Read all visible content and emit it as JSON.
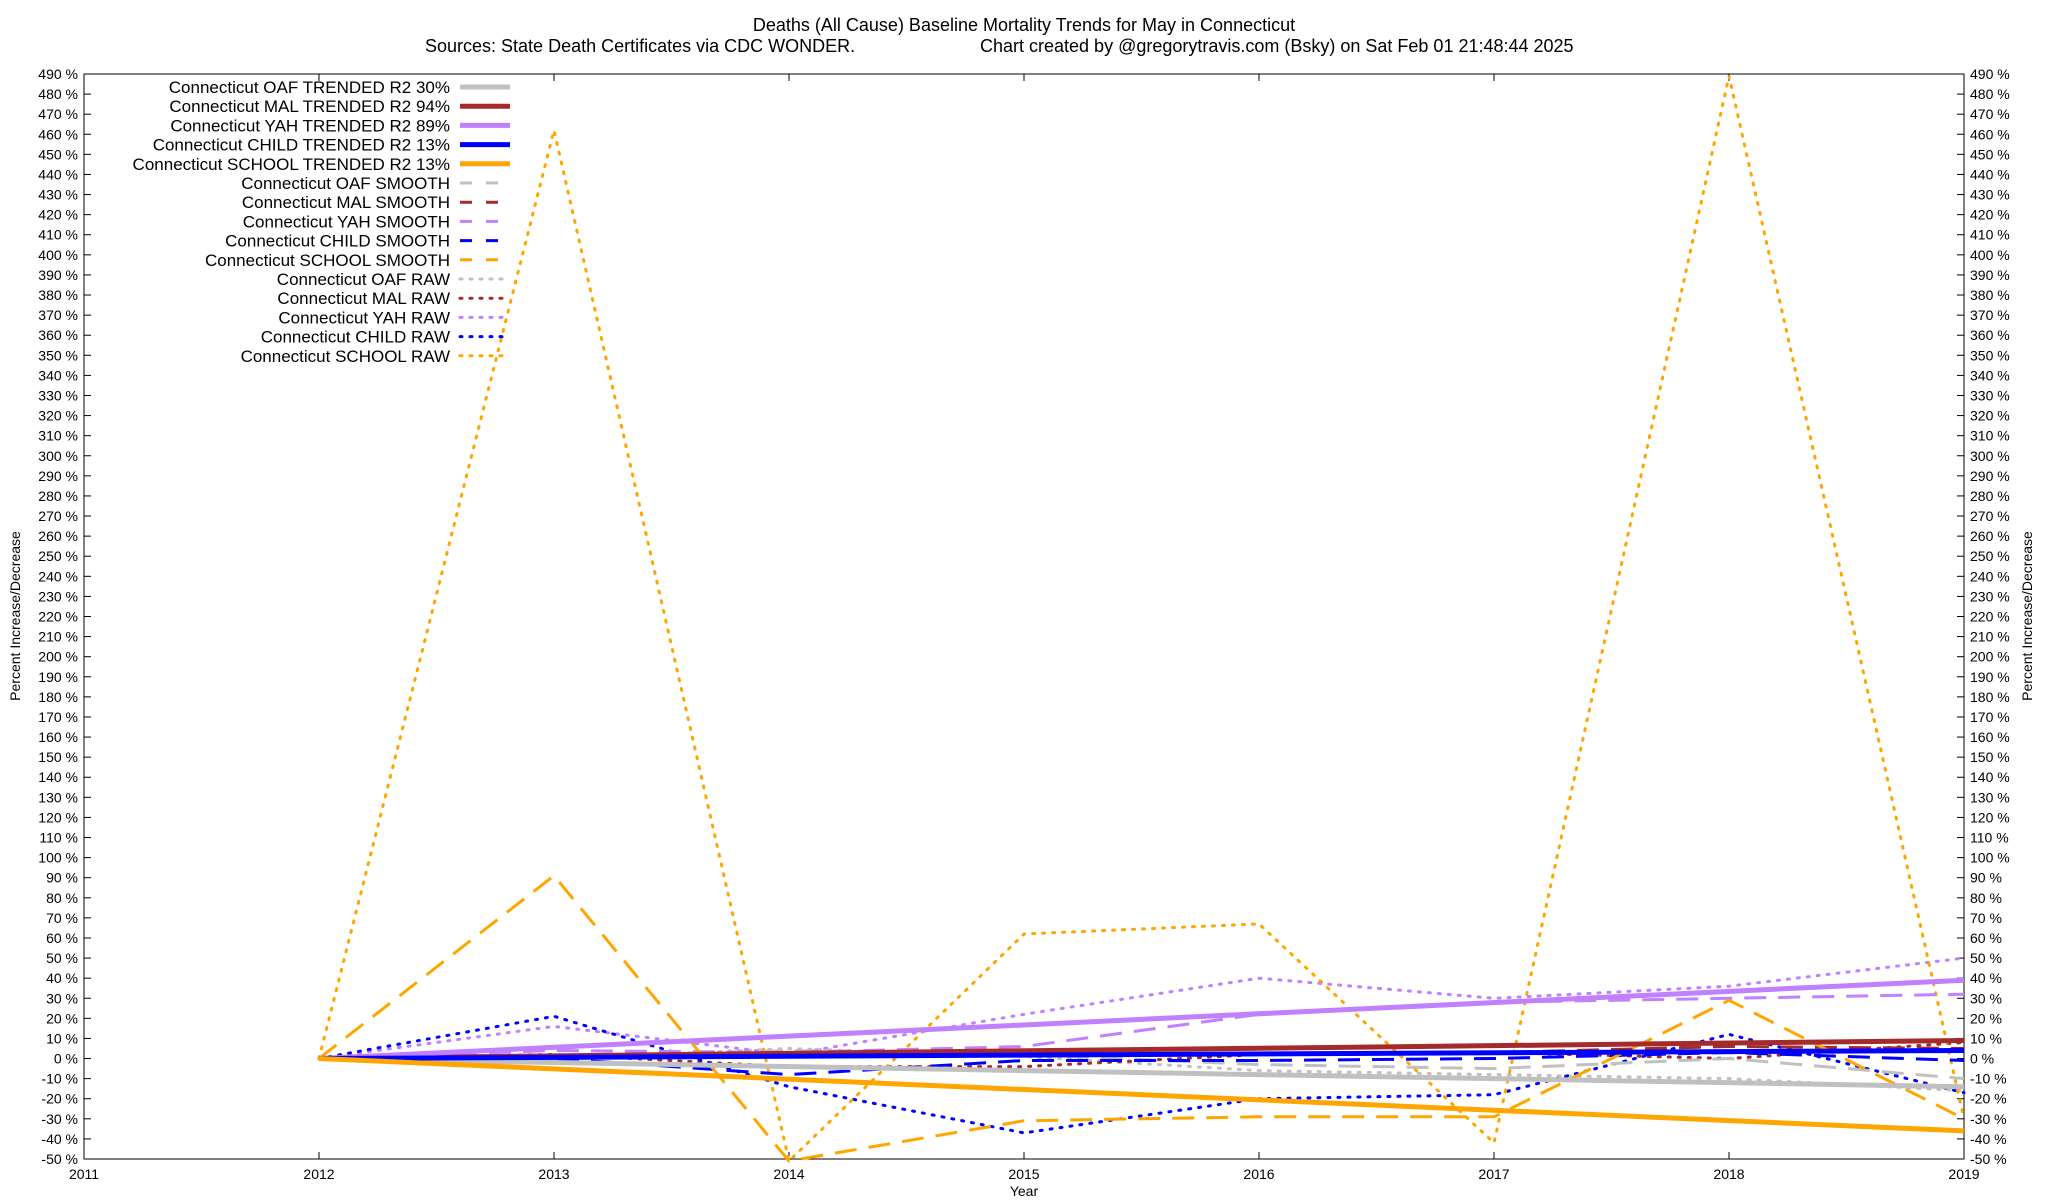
{
  "chart_data": {
    "type": "line",
    "title": "Deaths (All Cause)  Baseline Mortality Trends for May in Connecticut",
    "subtitle_left": "Sources: State Death Certificates via CDC WONDER.",
    "subtitle_right": "Chart created by @gregorytravis.com (Bsky) on Sat Feb 01 21:48:44 2025",
    "xlabel": "Year",
    "ylabel": "Percent Increase/Decrease",
    "y2label": "Percent Increase/Decrease",
    "xlim": [
      2011,
      2019
    ],
    "ylim": [
      -50,
      490
    ],
    "x_ticks": [
      "2011",
      "2012",
      "2013",
      "2014",
      "2015",
      "2016",
      "2017",
      "2018",
      "2019"
    ],
    "y_ticks": [
      "-50 %",
      "-40 %",
      "-30 %",
      "-20 %",
      "-10 %",
      "0 %",
      "10 %",
      "20 %",
      "30 %",
      "40 %",
      "50 %",
      "60 %",
      "70 %",
      "80 %",
      "90 %",
      "100 %",
      "110 %",
      "120 %",
      "130 %",
      "140 %",
      "150 %",
      "160 %",
      "170 %",
      "180 %",
      "190 %",
      "200 %",
      "210 %",
      "220 %",
      "230 %",
      "240 %",
      "250 %",
      "260 %",
      "270 %",
      "280 %",
      "290 %",
      "300 %",
      "310 %",
      "320 %",
      "330 %",
      "340 %",
      "350 %",
      "360 %",
      "370 %",
      "380 %",
      "390 %",
      "400 %",
      "410 %",
      "420 %",
      "430 %",
      "440 %",
      "450 %",
      "460 %",
      "470 %",
      "480 %",
      "490 %"
    ],
    "legend_position": "top-left",
    "grid": false,
    "series": [
      {
        "name": "Connecticut OAF TRENDED R2  30%",
        "style": "solid",
        "color": "#c0c0c0",
        "x": [
          2012,
          2019
        ],
        "y": [
          0,
          -14
        ]
      },
      {
        "name": "Connecticut MAL TRENDED R2  94%",
        "style": "solid",
        "color": "#a52a2a",
        "x": [
          2012,
          2019
        ],
        "y": [
          0,
          9
        ]
      },
      {
        "name": "Connecticut YAH TRENDED R2  89%",
        "style": "solid",
        "color": "#c080ff",
        "x": [
          2012,
          2019
        ],
        "y": [
          0,
          39
        ]
      },
      {
        "name": "Connecticut CHILD TRENDED R2  13%",
        "style": "solid",
        "color": "#0000ff",
        "x": [
          2012,
          2019
        ],
        "y": [
          0,
          4
        ]
      },
      {
        "name": "Connecticut SCHOOL TRENDED R2  13%",
        "style": "solid",
        "color": "#ffa500",
        "x": [
          2012,
          2019
        ],
        "y": [
          0,
          -36
        ]
      },
      {
        "name": "Connecticut OAF SMOOTH",
        "style": "dashed",
        "color": "#c0c0c0",
        "x": [
          2012,
          2013,
          2014,
          2015,
          2016,
          2017,
          2018,
          2019
        ],
        "y": [
          0,
          0,
          4,
          2,
          -3,
          -5,
          0,
          -10
        ]
      },
      {
        "name": "Connecticut MAL SMOOTH",
        "style": "dashed",
        "color": "#a52a2a",
        "x": [
          2012,
          2013,
          2014,
          2015,
          2016,
          2017,
          2018,
          2019
        ],
        "y": [
          0,
          1,
          1,
          2,
          2,
          3,
          6,
          5
        ]
      },
      {
        "name": "Connecticut YAH SMOOTH",
        "style": "dashed",
        "color": "#c080ff",
        "x": [
          2012,
          2013,
          2014,
          2015,
          2016,
          2017,
          2018,
          2019
        ],
        "y": [
          0,
          4,
          3,
          6,
          22,
          28,
          30,
          32
        ]
      },
      {
        "name": "Connecticut CHILD SMOOTH",
        "style": "dashed",
        "color": "#0000ff",
        "x": [
          2012,
          2013,
          2014,
          2015,
          2016,
          2017,
          2018,
          2019
        ],
        "y": [
          0,
          0,
          -8,
          -1,
          -1,
          0,
          3,
          -1
        ]
      },
      {
        "name": "Connecticut SCHOOL SMOOTH",
        "style": "dashed",
        "color": "#ffa500",
        "x": [
          2012,
          2013,
          2014,
          2015,
          2016,
          2017,
          2018,
          2019
        ],
        "y": [
          0,
          91,
          -51,
          -31,
          -29,
          -29,
          29,
          -30
        ]
      },
      {
        "name": "Connecticut OAF RAW",
        "style": "dotted",
        "color": "#c0c0c0",
        "x": [
          2012,
          2013,
          2014,
          2015,
          2016,
          2017,
          2018,
          2019
        ],
        "y": [
          0,
          0,
          5,
          1,
          -6,
          -8,
          -10,
          -16
        ]
      },
      {
        "name": "Connecticut MAL RAW",
        "style": "dotted",
        "color": "#a52a2a",
        "x": [
          2012,
          2013,
          2014,
          2015,
          2016,
          2017,
          2018,
          2019
        ],
        "y": [
          0,
          2,
          -4,
          -4,
          2,
          3,
          0,
          8
        ]
      },
      {
        "name": "Connecticut YAH RAW",
        "style": "dotted",
        "color": "#c080ff",
        "x": [
          2012,
          2013,
          2014,
          2015,
          2016,
          2017,
          2018,
          2019
        ],
        "y": [
          0,
          16,
          2,
          22,
          40,
          30,
          36,
          50
        ]
      },
      {
        "name": "Connecticut CHILD RAW",
        "style": "dotted",
        "color": "#0000ff",
        "x": [
          2012,
          2013,
          2014,
          2015,
          2016,
          2017,
          2018,
          2019
        ],
        "y": [
          0,
          21,
          -14,
          -37,
          -20,
          -18,
          12,
          -17
        ]
      },
      {
        "name": "Connecticut SCHOOL RAW",
        "style": "dotted",
        "color": "#ffa500",
        "x": [
          2012,
          2013,
          2014,
          2015,
          2016,
          2017,
          2018,
          2019
        ],
        "y": [
          0,
          462,
          -51,
          62,
          67,
          -42,
          489,
          -30
        ]
      }
    ]
  }
}
